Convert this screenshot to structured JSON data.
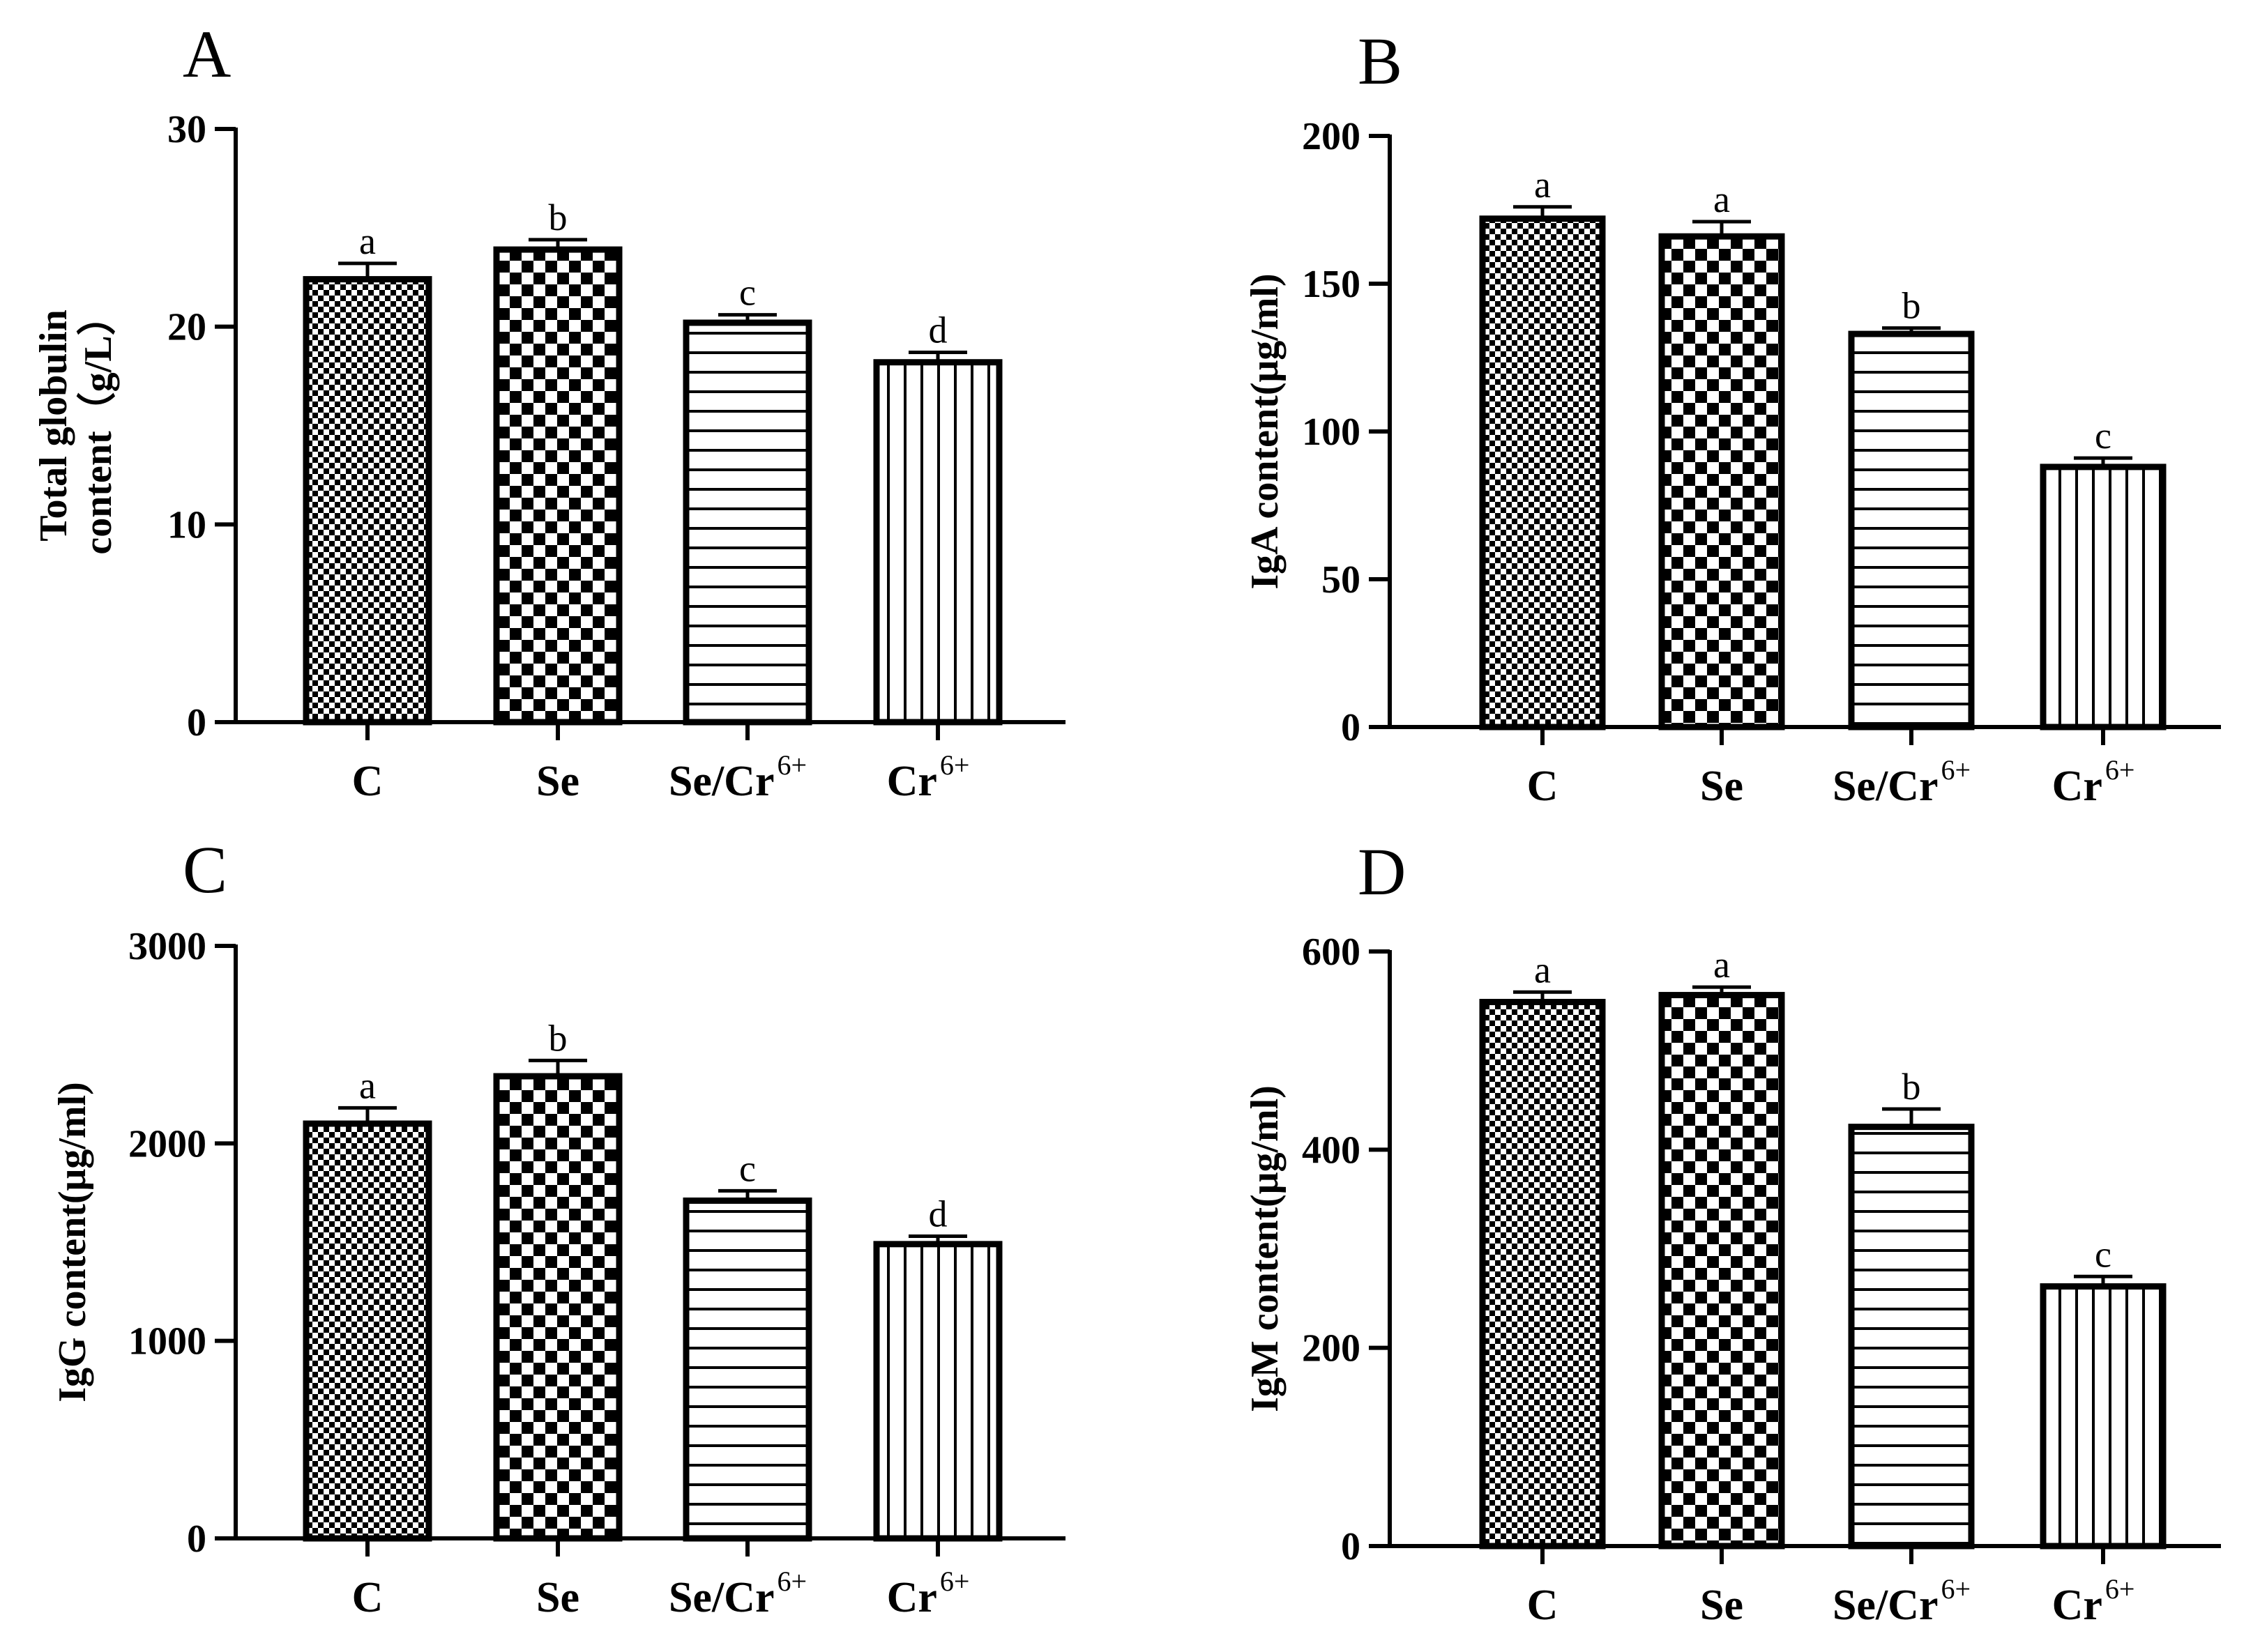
{
  "chart_data": [
    {
      "panel": "A",
      "type": "bar",
      "ylabel_lines": [
        "Total globulin",
        "content（g/L）"
      ],
      "ylim": [
        0,
        30
      ],
      "yticks": [
        0,
        10,
        20,
        30
      ],
      "categories": [
        {
          "base": "C",
          "sup": ""
        },
        {
          "base": "Se",
          "sup": ""
        },
        {
          "base": "Se/Cr",
          "sup": "6+"
        },
        {
          "base": "Cr",
          "sup": "6+"
        }
      ],
      "values": [
        22.4,
        23.9,
        20.2,
        18.2
      ],
      "errors": [
        0.8,
        0.5,
        0.4,
        0.5
      ],
      "letters": [
        "a",
        "b",
        "c",
        "d"
      ],
      "patterns": [
        "fine-check",
        "coarse-check",
        "horizontal",
        "vertical"
      ]
    },
    {
      "panel": "B",
      "type": "bar",
      "ylabel_lines": [
        "IgA content(μg/ml)"
      ],
      "ylim": [
        0,
        200
      ],
      "yticks": [
        0,
        50,
        100,
        150,
        200
      ],
      "categories": [
        {
          "base": "C",
          "sup": ""
        },
        {
          "base": "Se",
          "sup": ""
        },
        {
          "base": "Se/Cr",
          "sup": "6+"
        },
        {
          "base": "Cr",
          "sup": "6+"
        }
      ],
      "values": [
        172,
        166,
        133,
        88
      ],
      "errors": [
        4,
        5,
        2,
        3
      ],
      "letters": [
        "a",
        "a",
        "b",
        "c"
      ],
      "patterns": [
        "fine-check",
        "coarse-check",
        "horizontal",
        "vertical"
      ]
    },
    {
      "panel": "C",
      "type": "bar",
      "ylabel_lines": [
        "IgG content(μg/ml)"
      ],
      "ylim": [
        0,
        3000
      ],
      "yticks": [
        0,
        1000,
        2000,
        3000
      ],
      "categories": [
        {
          "base": "C",
          "sup": ""
        },
        {
          "base": "Se",
          "sup": ""
        },
        {
          "base": "Se/Cr",
          "sup": "6+"
        },
        {
          "base": "Cr",
          "sup": "6+"
        }
      ],
      "values": [
        2100,
        2340,
        1710,
        1490
      ],
      "errors": [
        80,
        80,
        50,
        40
      ],
      "letters": [
        "a",
        "b",
        "c",
        "d"
      ],
      "patterns": [
        "fine-check",
        "coarse-check",
        "horizontal",
        "vertical"
      ]
    },
    {
      "panel": "D",
      "type": "bar",
      "ylabel_lines": [
        "IgM content(μg/ml)"
      ],
      "ylim": [
        0,
        600
      ],
      "yticks": [
        0,
        200,
        400,
        600
      ],
      "categories": [
        {
          "base": "C",
          "sup": ""
        },
        {
          "base": "Se",
          "sup": ""
        },
        {
          "base": "Se/Cr",
          "sup": "6+"
        },
        {
          "base": "Cr",
          "sup": "6+"
        }
      ],
      "values": [
        549,
        556,
        423,
        262
      ],
      "errors": [
        10,
        8,
        18,
        10
      ],
      "letters": [
        "a",
        "a",
        "b",
        "c"
      ],
      "patterns": [
        "fine-check",
        "coarse-check",
        "horizontal",
        "vertical"
      ]
    }
  ]
}
